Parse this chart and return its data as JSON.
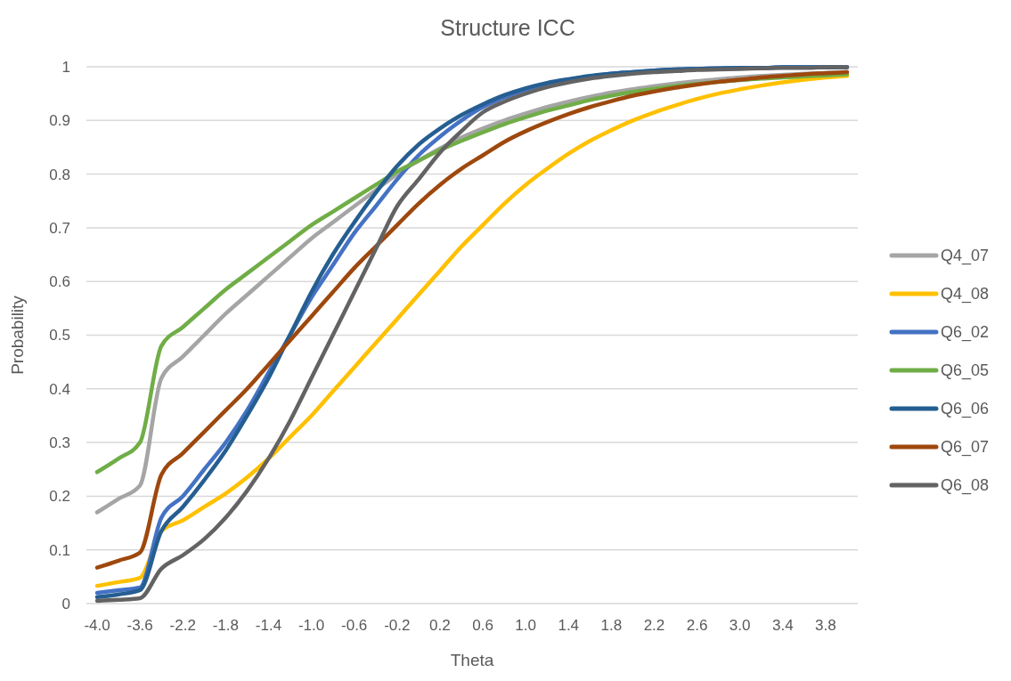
{
  "chart_data": {
    "type": "line",
    "title": "Structure ICC",
    "xlabel": "Theta",
    "ylabel": "Probability",
    "categories": [
      "-4.0",
      null,
      "-3.6",
      null,
      "-2.2",
      null,
      "-1.8",
      null,
      "-1.4",
      null,
      "-1.0",
      null,
      "-0.6",
      null,
      "-0.2",
      null,
      "0.2",
      null,
      "0.6",
      null,
      "1.0",
      null,
      "1.4",
      null,
      "1.8",
      null,
      "2.2",
      null,
      "2.6",
      null,
      "3.0",
      null,
      "3.4",
      null,
      "3.8",
      null
    ],
    "ylim": [
      0,
      1
    ],
    "yticks": [
      0,
      0.1,
      0.2,
      0.3,
      0.4,
      0.5,
      0.6,
      0.7,
      0.8,
      0.9,
      1
    ],
    "grid": "y",
    "legend": "right",
    "marker": "none",
    "line_style": "solid",
    "series": [
      {
        "name": "Q4_07",
        "color": "#a5a5a5",
        "values": [
          0.17,
          0.195,
          0.22,
          0.42,
          0.46,
          0.5,
          0.54,
          0.575,
          0.61,
          0.645,
          0.68,
          0.71,
          0.74,
          0.77,
          0.8,
          0.825,
          0.848,
          0.868,
          0.885,
          0.9,
          0.913,
          0.925,
          0.935,
          0.944,
          0.952,
          0.958,
          0.964,
          0.969,
          0.973,
          0.977,
          0.98,
          0.983,
          0.985,
          0.987,
          0.989,
          0.99
        ]
      },
      {
        "name": "Q4_08",
        "color": "#ffc000",
        "values": [
          0.033,
          0.04,
          0.048,
          0.135,
          0.155,
          0.18,
          0.205,
          0.235,
          0.27,
          0.31,
          0.35,
          0.395,
          0.44,
          0.485,
          0.53,
          0.575,
          0.62,
          0.665,
          0.705,
          0.745,
          0.78,
          0.81,
          0.838,
          0.862,
          0.882,
          0.9,
          0.915,
          0.928,
          0.94,
          0.95,
          0.958,
          0.965,
          0.971,
          0.976,
          0.98,
          0.983
        ]
      },
      {
        "name": "Q6_02",
        "color": "#4472c4",
        "values": [
          0.02,
          0.025,
          0.03,
          0.16,
          0.2,
          0.25,
          0.3,
          0.36,
          0.43,
          0.5,
          0.57,
          0.63,
          0.69,
          0.74,
          0.79,
          0.835,
          0.87,
          0.9,
          0.925,
          0.943,
          0.957,
          0.968,
          0.976,
          0.982,
          0.987,
          0.99,
          0.993,
          0.995,
          0.996,
          0.997,
          0.998,
          0.998,
          0.999,
          0.999,
          0.999,
          0.999
        ]
      },
      {
        "name": "Q6_05",
        "color": "#70ad47",
        "values": [
          0.245,
          0.27,
          0.3,
          0.48,
          0.515,
          0.55,
          0.585,
          0.615,
          0.645,
          0.675,
          0.705,
          0.73,
          0.755,
          0.78,
          0.805,
          0.825,
          0.845,
          0.862,
          0.878,
          0.893,
          0.906,
          0.918,
          0.928,
          0.938,
          0.946,
          0.953,
          0.959,
          0.964,
          0.968,
          0.972,
          0.975,
          0.978,
          0.98,
          0.982,
          0.984,
          0.986
        ]
      },
      {
        "name": "Q6_06",
        "color": "#255e91",
        "values": [
          0.012,
          0.017,
          0.025,
          0.135,
          0.18,
          0.23,
          0.285,
          0.35,
          0.42,
          0.5,
          0.58,
          0.65,
          0.71,
          0.765,
          0.815,
          0.855,
          0.885,
          0.91,
          0.93,
          0.947,
          0.96,
          0.97,
          0.977,
          0.983,
          0.987,
          0.99,
          0.993,
          0.995,
          0.996,
          0.997,
          0.998,
          0.998,
          0.999,
          0.999,
          0.999,
          0.999
        ]
      },
      {
        "name": "Q6_07",
        "color": "#9e480e",
        "values": [
          0.067,
          0.08,
          0.095,
          0.24,
          0.28,
          0.32,
          0.36,
          0.4,
          0.445,
          0.49,
          0.535,
          0.58,
          0.625,
          0.665,
          0.705,
          0.745,
          0.78,
          0.81,
          0.835,
          0.86,
          0.88,
          0.897,
          0.912,
          0.925,
          0.936,
          0.946,
          0.954,
          0.961,
          0.967,
          0.972,
          0.976,
          0.98,
          0.983,
          0.986,
          0.988,
          0.99
        ]
      },
      {
        "name": "Q6_08",
        "color": "#636363",
        "values": [
          0.005,
          0.007,
          0.01,
          0.065,
          0.09,
          0.12,
          0.16,
          0.21,
          0.27,
          0.34,
          0.42,
          0.5,
          0.58,
          0.66,
          0.74,
          0.79,
          0.84,
          0.88,
          0.915,
          0.935,
          0.95,
          0.962,
          0.971,
          0.978,
          0.983,
          0.987,
          0.99,
          0.992,
          0.994,
          0.995,
          0.996,
          0.997,
          0.998,
          0.998,
          0.999,
          0.999
        ]
      }
    ]
  }
}
